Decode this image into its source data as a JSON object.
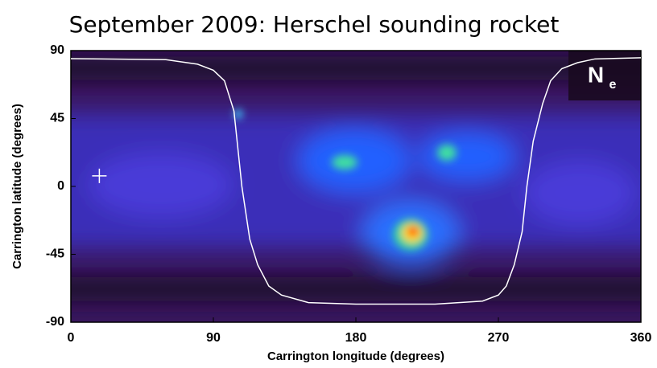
{
  "chart_data": {
    "type": "line",
    "title": "September 2009: Herschel sounding rocket",
    "xlabel": "Carrington longitude (degrees)",
    "ylabel": "Carrington latitude (degrees)",
    "annotation_main": "N",
    "annotation_sub": "e",
    "xlim": [
      0,
      360
    ],
    "ylim": [
      -90,
      90
    ],
    "xticks": [
      0,
      90,
      180,
      270,
      360
    ],
    "yticks": [
      -90,
      -45,
      0,
      45,
      90
    ],
    "series": [
      {
        "color": "#ffffff",
        "x": [
          0,
          60,
          80,
          90,
          97,
          103,
          108,
          113,
          118,
          125,
          133,
          150,
          180,
          230,
          260,
          270,
          275,
          280,
          285,
          288,
          292,
          298,
          303,
          310,
          320,
          331,
          360
        ],
        "values": [
          84.7,
          84,
          81,
          77,
          70,
          50,
          0,
          -35,
          -52,
          -66,
          -72,
          -77,
          -78,
          -78,
          -76,
          -72,
          -66,
          -52,
          -30,
          0,
          30,
          55,
          70,
          78,
          82,
          84.5,
          85.3
        ]
      },
      {
        "type": "scatter",
        "color": "#ffffff",
        "x": [
          18
        ],
        "values": [
          7
        ]
      }
    ]
  }
}
